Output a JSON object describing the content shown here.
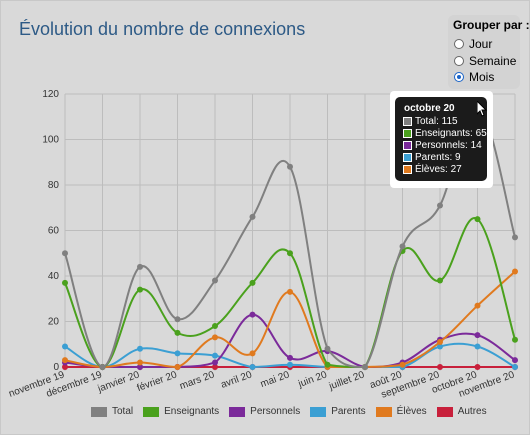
{
  "title": "Évolution du nombre de connexions",
  "group_by": {
    "label": "Grouper par :",
    "options": [
      "Jour",
      "Semaine",
      "Mois"
    ],
    "selected": "Mois"
  },
  "tooltip": {
    "title": "octobre 20",
    "rows": [
      {
        "label": "Total: 115",
        "color": "#808080"
      },
      {
        "label": "Enseignants: 65",
        "color": "#4aa11d"
      },
      {
        "label": "Personnels: 14",
        "color": "#7b2a9a"
      },
      {
        "label": "Parents: 9",
        "color": "#3b9fd3"
      },
      {
        "label": "Élèves: 27",
        "color": "#e07a1f"
      }
    ]
  },
  "chart_data": {
    "type": "line",
    "categories": [
      "novembre 19",
      "décembre 19",
      "janvier 20",
      "février 20",
      "mars 20",
      "avril 20",
      "mai 20",
      "juin 20",
      "juillet 20",
      "août 20",
      "septembre 20",
      "octobre 20",
      "novembre 20"
    ],
    "ylim": [
      0,
      120
    ],
    "yticks": [
      0,
      20,
      40,
      60,
      80,
      100,
      120
    ],
    "grid": true,
    "legend_position": "bottom",
    "series": [
      {
        "name": "Total",
        "color": "#808080",
        "values": [
          50,
          0,
          44,
          21,
          38,
          66,
          88,
          8,
          0,
          53,
          71,
          115,
          57
        ]
      },
      {
        "name": "Enseignants",
        "color": "#4aa11d",
        "values": [
          37,
          0,
          34,
          15,
          18,
          37,
          50,
          1,
          0,
          51,
          38,
          65,
          12
        ]
      },
      {
        "name": "Personnels",
        "color": "#7b2a9a",
        "values": [
          2,
          0,
          0,
          0,
          2,
          23,
          4,
          7,
          0,
          2,
          12,
          14,
          3
        ]
      },
      {
        "name": "Parents",
        "color": "#3b9fd3",
        "values": [
          9,
          0,
          8,
          6,
          5,
          0,
          1,
          0,
          0,
          0,
          9,
          9,
          0
        ]
      },
      {
        "name": "Élèves",
        "color": "#e07a1f",
        "values": [
          3,
          0,
          2,
          0,
          13,
          6,
          33,
          0,
          0,
          1,
          11,
          27,
          42
        ]
      },
      {
        "name": "Autres",
        "color": "#c8203b",
        "values": [
          0,
          0,
          0,
          0,
          0,
          0,
          0,
          0,
          0,
          0,
          0,
          0,
          0
        ]
      }
    ]
  }
}
